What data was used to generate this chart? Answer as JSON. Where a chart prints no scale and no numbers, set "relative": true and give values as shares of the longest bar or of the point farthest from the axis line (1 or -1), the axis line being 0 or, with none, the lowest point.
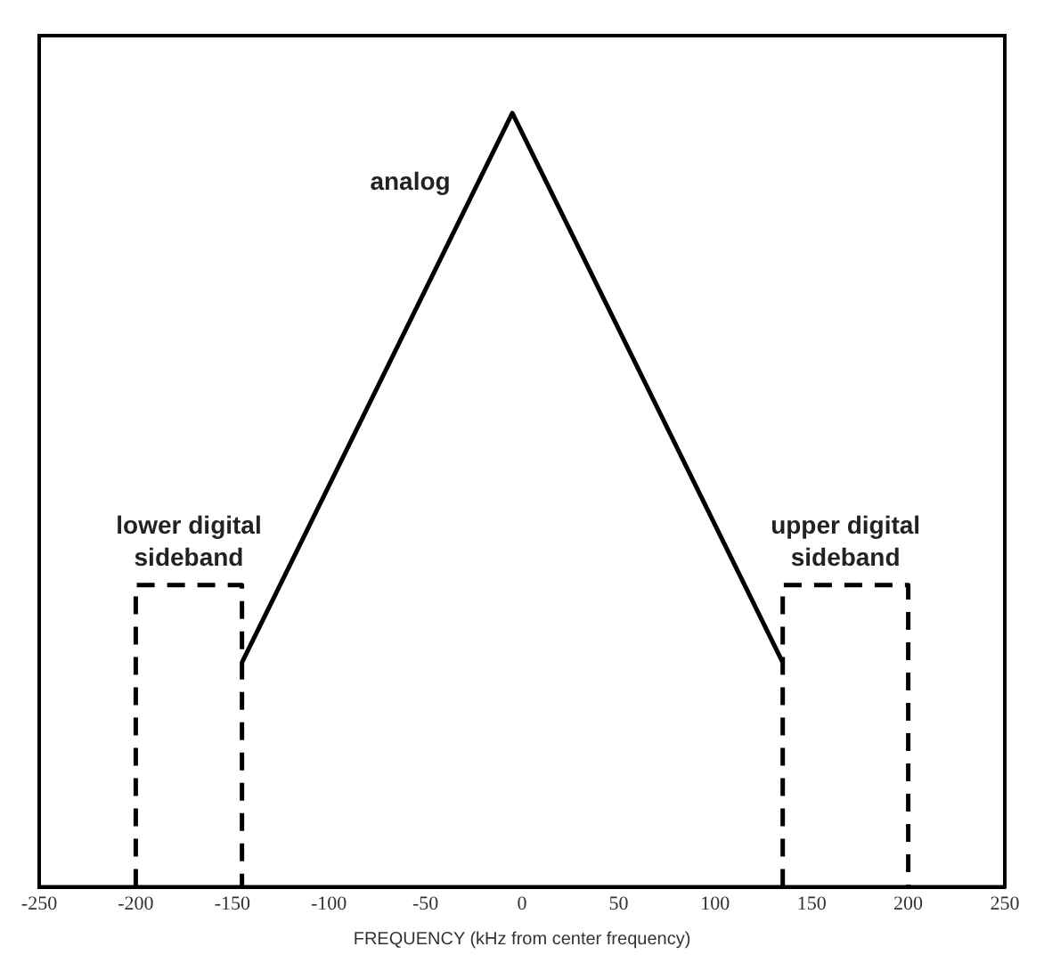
{
  "chart_data": {
    "type": "line",
    "relative": true,
    "xlabel": "FREQUENCY (kHz from center frequency)",
    "xlim": [
      -250,
      250
    ],
    "xticks": [
      -250,
      -200,
      -150,
      -100,
      -50,
      0,
      50,
      100,
      150,
      200,
      250
    ],
    "grid": false,
    "legend": false,
    "marker": "none",
    "series": [
      {
        "name": "analog",
        "color": "#000000",
        "line_style": "solid",
        "x": [
          -145,
          -5,
          135
        ],
        "values": [
          0.29,
          1,
          0.29
        ]
      },
      {
        "name": "lower digital sideband",
        "color": "#000000",
        "line_style": "dashed",
        "x": [
          -200,
          -200,
          -145,
          -145
        ],
        "values": [
          0,
          0.39,
          0.39,
          0
        ]
      },
      {
        "name": "upper digital sideband",
        "color": "#000000",
        "line_style": "dashed",
        "x": [
          135,
          135,
          200,
          200
        ],
        "values": [
          0,
          0.39,
          0.39,
          0
        ]
      }
    ]
  }
}
